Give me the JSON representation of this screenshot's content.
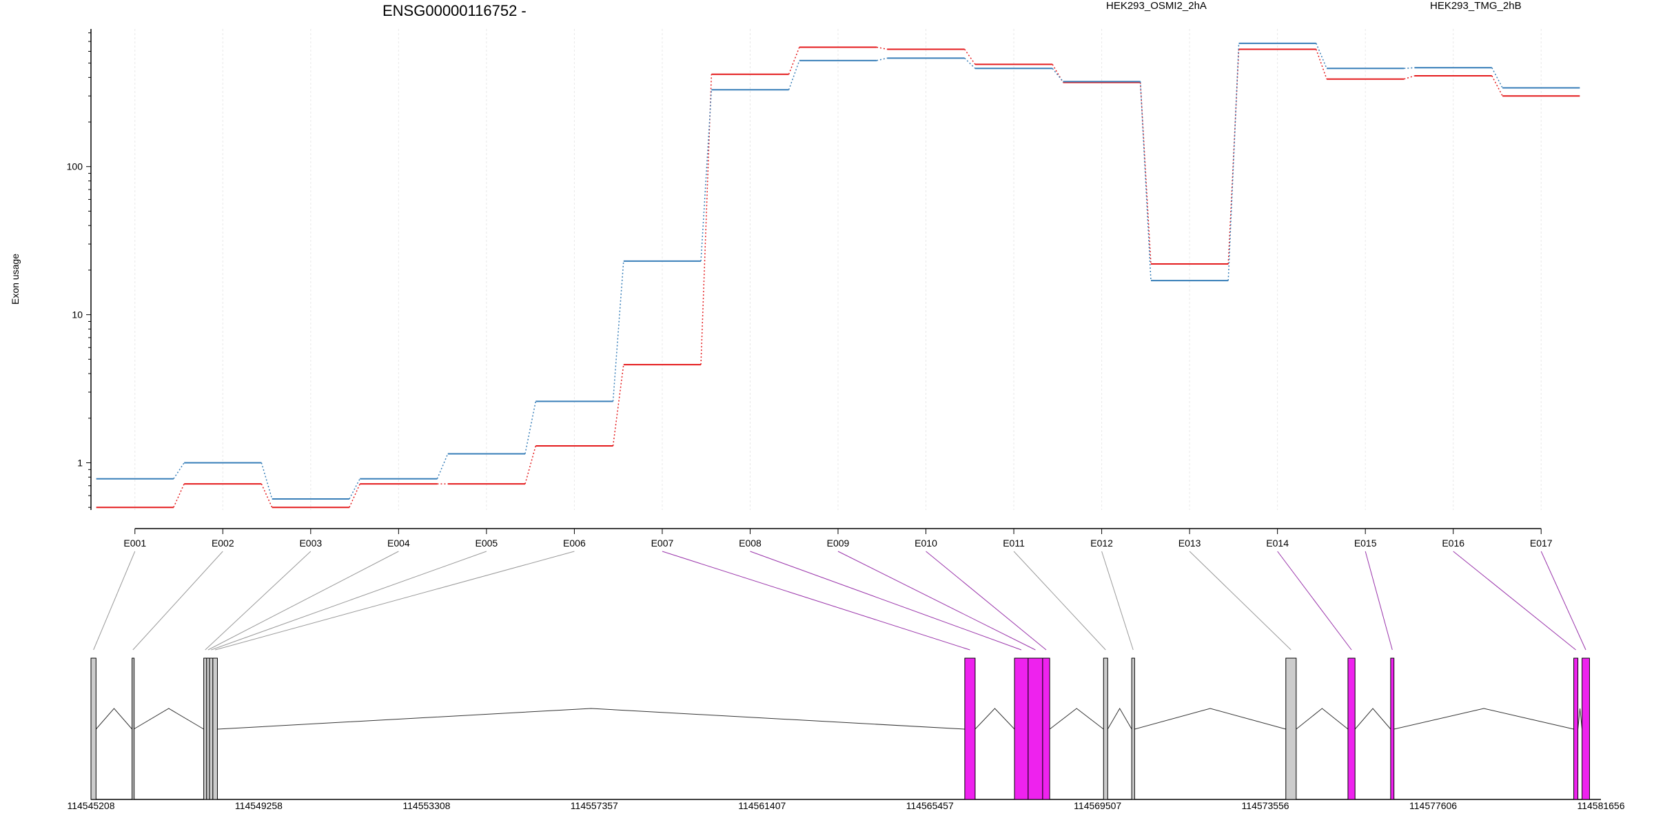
{
  "chart_data": {
    "type": "line",
    "title": "ENSG00000116752 -",
    "ylabel": "Exon usage",
    "yscale": "log",
    "ylim": [
      0.48,
      850
    ],
    "yticks": [
      1,
      10,
      100
    ],
    "ytick_labels": [
      "1",
      "10",
      "100"
    ],
    "categories": [
      "E001",
      "E002",
      "E003",
      "E004",
      "E005",
      "E006",
      "E007",
      "E008",
      "E009",
      "E010",
      "E011",
      "E012",
      "E013",
      "E014",
      "E015",
      "E016",
      "E017"
    ],
    "series": [
      {
        "name": "HEK293_OSMI2_2hA",
        "color": "#e41a1c",
        "values": [
          0.5,
          0.72,
          0.5,
          0.72,
          0.72,
          1.3,
          4.6,
          420,
          640,
          620,
          490,
          370,
          22,
          620,
          390,
          410,
          300
        ]
      },
      {
        "name": "HEK293_TMG_2hB",
        "color": "#377eb8",
        "values": [
          0.78,
          1.0,
          0.57,
          0.78,
          1.15,
          2.6,
          23,
          330,
          520,
          540,
          460,
          375,
          17,
          680,
          460,
          465,
          340
        ]
      }
    ],
    "legend_position": "top-right",
    "grid": "vertical-light"
  },
  "gene_model": {
    "positions": [
      "114545208",
      "114549258",
      "114553308",
      "114557357",
      "114561407",
      "114565457",
      "114569507",
      "114573556",
      "114577606",
      "114581656"
    ],
    "position_values": [
      114545208,
      114549258,
      114553308,
      114557357,
      114561407,
      114565457,
      114569507,
      114573556,
      114577606,
      114581656
    ],
    "range": [
      114545208,
      114581656
    ],
    "exons": [
      {
        "id": "E001",
        "start": 114545208,
        "end": 114545330,
        "significant": false
      },
      {
        "id": "E002",
        "start": 114546200,
        "end": 114546240,
        "significant": false
      },
      {
        "id": "E003",
        "start": 114547930,
        "end": 114548000,
        "significant": false
      },
      {
        "id": "E004",
        "start": 114548000,
        "end": 114548070,
        "significant": false
      },
      {
        "id": "E005",
        "start": 114548070,
        "end": 114548150,
        "significant": false
      },
      {
        "id": "E006",
        "start": 114548150,
        "end": 114548260,
        "significant": false
      },
      {
        "id": "E007",
        "start": 114566300,
        "end": 114566550,
        "significant": true
      },
      {
        "id": "E008",
        "start": 114567500,
        "end": 114567830,
        "significant": true
      },
      {
        "id": "E009",
        "start": 114567830,
        "end": 114568180,
        "significant": true
      },
      {
        "id": "E010",
        "start": 114568180,
        "end": 114568350,
        "significant": true
      },
      {
        "id": "E011",
        "start": 114569650,
        "end": 114569750,
        "significant": false
      },
      {
        "id": "E012",
        "start": 114570330,
        "end": 114570400,
        "significant": false
      },
      {
        "id": "E013",
        "start": 114574050,
        "end": 114574300,
        "significant": false
      },
      {
        "id": "E014",
        "start": 114575550,
        "end": 114575720,
        "significant": true
      },
      {
        "id": "E015",
        "start": 114576580,
        "end": 114576660,
        "significant": true
      },
      {
        "id": "E016",
        "start": 114581000,
        "end": 114581100,
        "significant": true
      },
      {
        "id": "E017",
        "start": 114581200,
        "end": 114581380,
        "significant": true
      }
    ],
    "colors": {
      "significant": "#ee22ee",
      "normal": "#cccccc",
      "significant_link": "#9933aa",
      "normal_link": "#999999"
    }
  }
}
